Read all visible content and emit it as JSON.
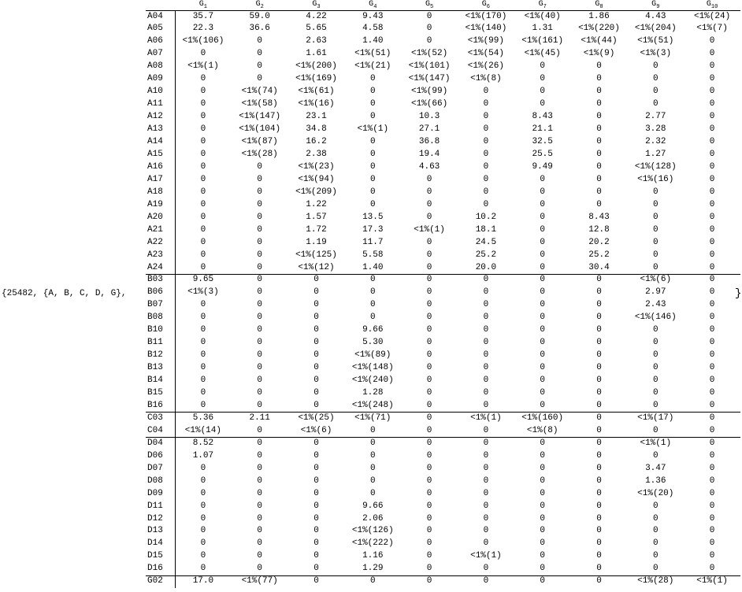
{
  "prefix": "{25482, {A, B, C, D, G},",
  "suffix": "}",
  "table": {
    "headers": [
      {
        "letter": "G",
        "index": "1"
      },
      {
        "letter": "G",
        "index": "2"
      },
      {
        "letter": "G",
        "index": "3"
      },
      {
        "letter": "G",
        "index": "4"
      },
      {
        "letter": "G",
        "index": "5"
      },
      {
        "letter": "G",
        "index": "6"
      },
      {
        "letter": "G",
        "index": "7"
      },
      {
        "letter": "G",
        "index": "8"
      },
      {
        "letter": "G",
        "index": "9"
      },
      {
        "letter": "G",
        "index": "10"
      }
    ],
    "sections": [
      {
        "rows": [
          {
            "label": "A04",
            "cells": [
              "35.7",
              "59.0",
              "4.22",
              "9.43",
              "0",
              "<1%(170)",
              "<1%(40)",
              "1.86",
              "4.43",
              "<1%(24)"
            ]
          },
          {
            "label": "A05",
            "cells": [
              "22.3",
              "36.6",
              "5.65",
              "4.58",
              "0",
              "<1%(140)",
              "1.31",
              "<1%(220)",
              "<1%(204)",
              "<1%(7)"
            ]
          },
          {
            "label": "A06",
            "cells": [
              "<1%(106)",
              "0",
              "2.63",
              "1.40",
              "0",
              "<1%(99)",
              "<1%(161)",
              "<1%(44)",
              "<1%(51)",
              "0"
            ]
          },
          {
            "label": "A07",
            "cells": [
              "0",
              "0",
              "1.61",
              "<1%(51)",
              "<1%(52)",
              "<1%(54)",
              "<1%(45)",
              "<1%(9)",
              "<1%(3)",
              "0"
            ]
          },
          {
            "label": "A08",
            "cells": [
              "<1%(1)",
              "0",
              "<1%(200)",
              "<1%(21)",
              "<1%(101)",
              "<1%(26)",
              "0",
              "0",
              "0",
              "0"
            ]
          },
          {
            "label": "A09",
            "cells": [
              "0",
              "0",
              "<1%(169)",
              "0",
              "<1%(147)",
              "<1%(8)",
              "0",
              "0",
              "0",
              "0"
            ]
          },
          {
            "label": "A10",
            "cells": [
              "0",
              "<1%(74)",
              "<1%(61)",
              "0",
              "<1%(99)",
              "0",
              "0",
              "0",
              "0",
              "0"
            ]
          },
          {
            "label": "A11",
            "cells": [
              "0",
              "<1%(58)",
              "<1%(16)",
              "0",
              "<1%(66)",
              "0",
              "0",
              "0",
              "0",
              "0"
            ]
          },
          {
            "label": "A12",
            "cells": [
              "0",
              "<1%(147)",
              "23.1",
              "0",
              "10.3",
              "0",
              "8.43",
              "0",
              "2.77",
              "0"
            ]
          },
          {
            "label": "A13",
            "cells": [
              "0",
              "<1%(104)",
              "34.8",
              "<1%(1)",
              "27.1",
              "0",
              "21.1",
              "0",
              "3.28",
              "0"
            ]
          },
          {
            "label": "A14",
            "cells": [
              "0",
              "<1%(87)",
              "16.2",
              "0",
              "36.8",
              "0",
              "32.5",
              "0",
              "2.32",
              "0"
            ]
          },
          {
            "label": "A15",
            "cells": [
              "0",
              "<1%(28)",
              "2.38",
              "0",
              "19.4",
              "0",
              "25.5",
              "0",
              "1.27",
              "0"
            ]
          },
          {
            "label": "A16",
            "cells": [
              "0",
              "0",
              "<1%(23)",
              "0",
              "4.63",
              "0",
              "9.49",
              "0",
              "<1%(128)",
              "0"
            ]
          },
          {
            "label": "A17",
            "cells": [
              "0",
              "0",
              "<1%(94)",
              "0",
              "0",
              "0",
              "0",
              "0",
              "<1%(16)",
              "0"
            ]
          },
          {
            "label": "A18",
            "cells": [
              "0",
              "0",
              "<1%(209)",
              "0",
              "0",
              "0",
              "0",
              "0",
              "0",
              "0"
            ]
          },
          {
            "label": "A19",
            "cells": [
              "0",
              "0",
              "1.22",
              "0",
              "0",
              "0",
              "0",
              "0",
              "0",
              "0"
            ]
          },
          {
            "label": "A20",
            "cells": [
              "0",
              "0",
              "1.57",
              "13.5",
              "0",
              "10.2",
              "0",
              "8.43",
              "0",
              "0"
            ]
          },
          {
            "label": "A21",
            "cells": [
              "0",
              "0",
              "1.72",
              "17.3",
              "<1%(1)",
              "18.1",
              "0",
              "12.8",
              "0",
              "0"
            ]
          },
          {
            "label": "A22",
            "cells": [
              "0",
              "0",
              "1.19",
              "11.7",
              "0",
              "24.5",
              "0",
              "20.2",
              "0",
              "0"
            ]
          },
          {
            "label": "A23",
            "cells": [
              "0",
              "0",
              "<1%(125)",
              "5.58",
              "0",
              "25.2",
              "0",
              "25.2",
              "0",
              "0"
            ]
          },
          {
            "label": "A24",
            "cells": [
              "0",
              "0",
              "<1%(12)",
              "1.40",
              "0",
              "20.0",
              "0",
              "30.4",
              "0",
              "0"
            ]
          }
        ]
      },
      {
        "rows": [
          {
            "label": "B03",
            "cells": [
              "9.65",
              "0",
              "0",
              "0",
              "0",
              "0",
              "0",
              "0",
              "<1%(6)",
              "0"
            ]
          },
          {
            "label": "B06",
            "cells": [
              "<1%(3)",
              "0",
              "0",
              "0",
              "0",
              "0",
              "0",
              "0",
              "2.97",
              "0"
            ]
          },
          {
            "label": "B07",
            "cells": [
              "0",
              "0",
              "0",
              "0",
              "0",
              "0",
              "0",
              "0",
              "2.43",
              "0"
            ]
          },
          {
            "label": "B08",
            "cells": [
              "0",
              "0",
              "0",
              "0",
              "0",
              "0",
              "0",
              "0",
              "<1%(146)",
              "0"
            ]
          },
          {
            "label": "B10",
            "cells": [
              "0",
              "0",
              "0",
              "9.66",
              "0",
              "0",
              "0",
              "0",
              "0",
              "0"
            ]
          },
          {
            "label": "B11",
            "cells": [
              "0",
              "0",
              "0",
              "5.30",
              "0",
              "0",
              "0",
              "0",
              "0",
              "0"
            ]
          },
          {
            "label": "B12",
            "cells": [
              "0",
              "0",
              "0",
              "<1%(89)",
              "0",
              "0",
              "0",
              "0",
              "0",
              "0"
            ]
          },
          {
            "label": "B13",
            "cells": [
              "0",
              "0",
              "0",
              "<1%(148)",
              "0",
              "0",
              "0",
              "0",
              "0",
              "0"
            ]
          },
          {
            "label": "B14",
            "cells": [
              "0",
              "0",
              "0",
              "<1%(240)",
              "0",
              "0",
              "0",
              "0",
              "0",
              "0"
            ]
          },
          {
            "label": "B15",
            "cells": [
              "0",
              "0",
              "0",
              "1.28",
              "0",
              "0",
              "0",
              "0",
              "0",
              "0"
            ]
          },
          {
            "label": "B16",
            "cells": [
              "0",
              "0",
              "0",
              "<1%(248)",
              "0",
              "0",
              "0",
              "0",
              "0",
              "0"
            ]
          }
        ]
      },
      {
        "rows": [
          {
            "label": "C03",
            "cells": [
              "5.36",
              "2.11",
              "<1%(25)",
              "<1%(71)",
              "0",
              "<1%(1)",
              "<1%(160)",
              "0",
              "<1%(17)",
              "0"
            ]
          },
          {
            "label": "C04",
            "cells": [
              "<1%(14)",
              "0",
              "<1%(6)",
              "0",
              "0",
              "0",
              "<1%(8)",
              "0",
              "0",
              "0"
            ]
          }
        ]
      },
      {
        "rows": [
          {
            "label": "D04",
            "cells": [
              "8.52",
              "0",
              "0",
              "0",
              "0",
              "0",
              "0",
              "0",
              "<1%(1)",
              "0"
            ]
          },
          {
            "label": "D06",
            "cells": [
              "1.07",
              "0",
              "0",
              "0",
              "0",
              "0",
              "0",
              "0",
              "0",
              "0"
            ]
          },
          {
            "label": "D07",
            "cells": [
              "0",
              "0",
              "0",
              "0",
              "0",
              "0",
              "0",
              "0",
              "3.47",
              "0"
            ]
          },
          {
            "label": "D08",
            "cells": [
              "0",
              "0",
              "0",
              "0",
              "0",
              "0",
              "0",
              "0",
              "1.36",
              "0"
            ]
          },
          {
            "label": "D09",
            "cells": [
              "0",
              "0",
              "0",
              "0",
              "0",
              "0",
              "0",
              "0",
              "<1%(20)",
              "0"
            ]
          },
          {
            "label": "D11",
            "cells": [
              "0",
              "0",
              "0",
              "9.66",
              "0",
              "0",
              "0",
              "0",
              "0",
              "0"
            ]
          },
          {
            "label": "D12",
            "cells": [
              "0",
              "0",
              "0",
              "2.06",
              "0",
              "0",
              "0",
              "0",
              "0",
              "0"
            ]
          },
          {
            "label": "D13",
            "cells": [
              "0",
              "0",
              "0",
              "<1%(126)",
              "0",
              "0",
              "0",
              "0",
              "0",
              "0"
            ]
          },
          {
            "label": "D14",
            "cells": [
              "0",
              "0",
              "0",
              "<1%(222)",
              "0",
              "0",
              "0",
              "0",
              "0",
              "0"
            ]
          },
          {
            "label": "D15",
            "cells": [
              "0",
              "0",
              "0",
              "1.16",
              "0",
              "<1%(1)",
              "0",
              "0",
              "0",
              "0"
            ]
          },
          {
            "label": "D16",
            "cells": [
              "0",
              "0",
              "0",
              "1.29",
              "0",
              "0",
              "0",
              "0",
              "0",
              "0"
            ]
          }
        ]
      },
      {
        "rows": [
          {
            "label": "G02",
            "cells": [
              "17.0",
              "<1%(77)",
              "0",
              "0",
              "0",
              "0",
              "0",
              "0",
              "<1%(28)",
              "<1%(1)"
            ]
          }
        ]
      }
    ]
  }
}
